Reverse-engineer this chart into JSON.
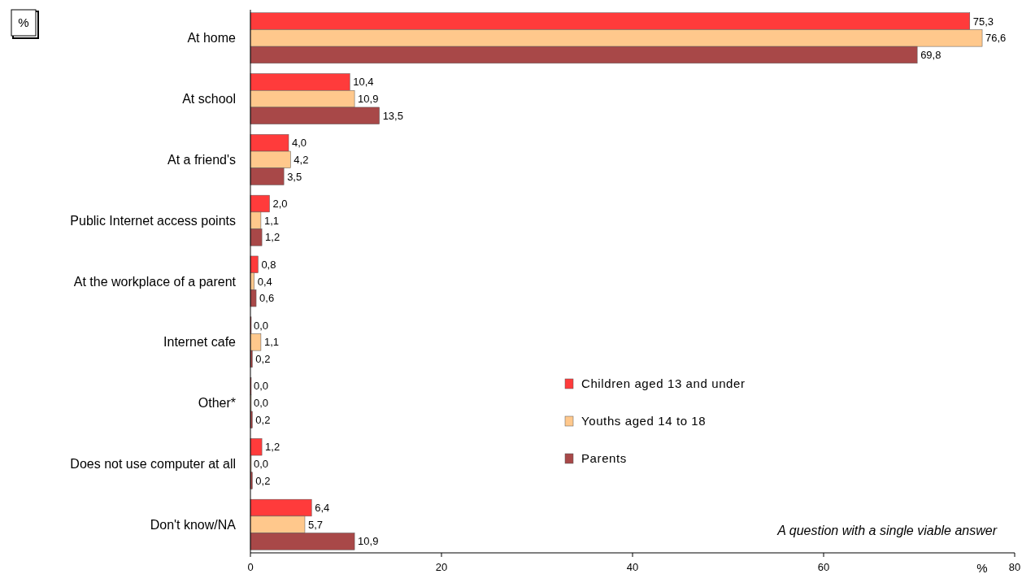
{
  "chart_data": {
    "type": "bar",
    "orientation": "horizontal",
    "categories": [
      "At home",
      "At school",
      "At a friend's",
      "Public Internet access points",
      "At the workplace of a parent",
      "Internet cafe",
      "Other*",
      "Does not use computer at all",
      "Don't know/NA"
    ],
    "series": [
      {
        "name": "Children aged 13 and under",
        "color": "#ff3b3b",
        "values": [
          75.3,
          10.4,
          4.0,
          2.0,
          0.8,
          0.0,
          0.0,
          1.2,
          6.4
        ],
        "value_labels": [
          "75,3",
          "10,4",
          "4,0",
          "2,0",
          "0,8",
          "0,0",
          "0,0",
          "1,2",
          "6,4"
        ]
      },
      {
        "name": "Youths aged 14 to 18",
        "color": "#ffc88c",
        "values": [
          76.6,
          10.9,
          4.2,
          1.1,
          0.4,
          1.1,
          0.0,
          0.0,
          5.7
        ],
        "value_labels": [
          "76,6",
          "10,9",
          "4,2",
          "1,1",
          "0,4",
          "1,1",
          "0,0",
          "0,0",
          "5,7"
        ]
      },
      {
        "name": "Parents",
        "color": "#a84848",
        "values": [
          69.8,
          13.5,
          3.5,
          1.2,
          0.6,
          0.2,
          0.2,
          0.2,
          10.9
        ],
        "value_labels": [
          "69,8",
          "13,5",
          "3,5",
          "1,2",
          "0,6",
          "0,2",
          "0,2",
          "0,2",
          "10,9"
        ]
      }
    ],
    "xlim": [
      0,
      80
    ],
    "xticks": [
      0,
      20,
      40,
      60,
      80
    ],
    "xlabel": "%",
    "grid": false,
    "legend": "right",
    "annotations": [
      "%",
      "A question with a single viable answer"
    ]
  }
}
